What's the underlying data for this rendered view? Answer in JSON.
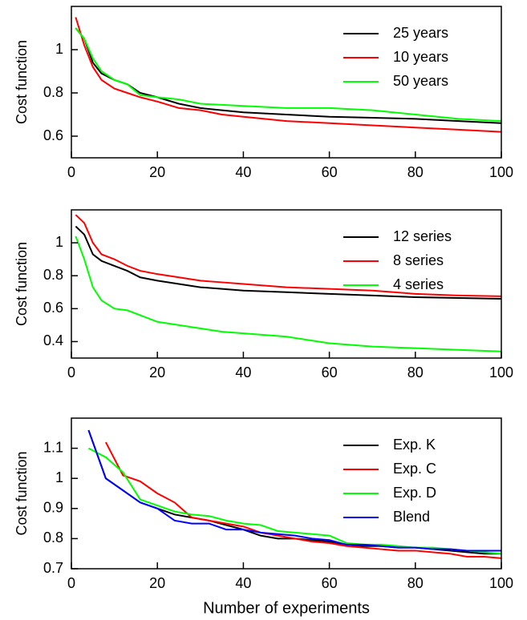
{
  "chart_data": [
    {
      "type": "line",
      "y_label": "Cost function",
      "x": [
        1,
        3,
        5,
        7,
        10,
        13,
        16,
        20,
        25,
        30,
        35,
        40,
        50,
        60,
        70,
        80,
        90,
        100
      ],
      "series": [
        {
          "name": "25 years",
          "color": "#000000",
          "values": [
            1.1,
            1.05,
            0.94,
            0.89,
            0.86,
            0.84,
            0.8,
            0.78,
            0.75,
            0.73,
            0.72,
            0.71,
            0.7,
            0.69,
            0.685,
            0.68,
            0.67,
            0.66
          ]
        },
        {
          "name": "10 years",
          "color": "#ff0000",
          "values": [
            1.15,
            1.02,
            0.92,
            0.86,
            0.82,
            0.8,
            0.78,
            0.76,
            0.73,
            0.72,
            0.7,
            0.69,
            0.67,
            0.66,
            0.65,
            0.64,
            0.63,
            0.62
          ]
        },
        {
          "name": "50 years",
          "color": "#00ff00",
          "values": [
            1.1,
            1.05,
            0.96,
            0.9,
            0.86,
            0.84,
            0.79,
            0.78,
            0.77,
            0.75,
            0.745,
            0.74,
            0.73,
            0.73,
            0.72,
            0.7,
            0.68,
            0.67
          ]
        }
      ],
      "xlim": [
        0,
        100
      ],
      "xticks": [
        0,
        20,
        40,
        60,
        80,
        100
      ],
      "ylim": [
        0.5,
        1.2
      ],
      "yticks": [
        0.6,
        0.8,
        1
      ],
      "legend": "upper right"
    },
    {
      "type": "line",
      "y_label": "Cost function",
      "x": [
        1,
        3,
        5,
        7,
        10,
        13,
        16,
        20,
        25,
        30,
        35,
        40,
        50,
        60,
        70,
        80,
        90,
        100
      ],
      "series": [
        {
          "name": "12 series",
          "color": "#000000",
          "values": [
            1.1,
            1.05,
            0.93,
            0.89,
            0.86,
            0.83,
            0.79,
            0.77,
            0.75,
            0.73,
            0.72,
            0.71,
            0.7,
            0.69,
            0.68,
            0.67,
            0.665,
            0.66
          ]
        },
        {
          "name": "8 series",
          "color": "#ff0000",
          "values": [
            1.17,
            1.12,
            1.0,
            0.93,
            0.9,
            0.86,
            0.83,
            0.81,
            0.79,
            0.77,
            0.76,
            0.75,
            0.73,
            0.72,
            0.71,
            0.69,
            0.68,
            0.675
          ]
        },
        {
          "name": "4 series",
          "color": "#00ff00",
          "values": [
            1.04,
            0.9,
            0.73,
            0.65,
            0.6,
            0.59,
            0.56,
            0.52,
            0.5,
            0.48,
            0.46,
            0.45,
            0.43,
            0.39,
            0.37,
            0.36,
            0.35,
            0.34
          ]
        }
      ],
      "xlim": [
        0,
        100
      ],
      "xticks": [
        0,
        20,
        40,
        60,
        80,
        100
      ],
      "ylim": [
        0.3,
        1.2
      ],
      "yticks": [
        0.4,
        0.6,
        0.8,
        1
      ],
      "legend": "upper right"
    },
    {
      "type": "line",
      "y_label": "Cost function",
      "x_label": "Number of experiments",
      "x": [
        4,
        8,
        12,
        16,
        20,
        24,
        28,
        32,
        36,
        40,
        44,
        48,
        52,
        56,
        60,
        64,
        68,
        72,
        76,
        80,
        84,
        88,
        92,
        96,
        100
      ],
      "series": [
        {
          "name": "Exp. K",
          "color": "#000000",
          "values": [
            1.16,
            1.0,
            0.96,
            0.92,
            0.9,
            0.88,
            0.87,
            0.86,
            0.845,
            0.83,
            0.81,
            0.8,
            0.8,
            0.795,
            0.79,
            0.78,
            0.775,
            0.775,
            0.77,
            0.77,
            0.765,
            0.76,
            0.755,
            0.75,
            0.75
          ]
        },
        {
          "name": "Exp. C",
          "color": "#ff0000",
          "values": [
            null,
            1.12,
            1.01,
            0.99,
            0.95,
            0.92,
            0.87,
            0.86,
            0.85,
            0.84,
            0.82,
            0.81,
            0.8,
            0.79,
            0.785,
            0.775,
            0.77,
            0.765,
            0.76,
            0.76,
            0.755,
            0.75,
            0.74,
            0.74,
            0.735
          ]
        },
        {
          "name": "Exp. D",
          "color": "#00ff00",
          "values": [
            1.1,
            1.07,
            1.02,
            0.93,
            0.91,
            0.89,
            0.88,
            0.875,
            0.86,
            0.85,
            0.845,
            0.825,
            0.82,
            0.815,
            0.81,
            0.785,
            0.78,
            0.78,
            0.775,
            0.77,
            0.77,
            0.765,
            0.76,
            0.755,
            0.75
          ]
        },
        {
          "name": "Blend",
          "color": "#0000ff",
          "values": [
            1.16,
            1.0,
            0.96,
            0.92,
            0.9,
            0.86,
            0.85,
            0.85,
            0.83,
            0.83,
            0.82,
            0.815,
            0.81,
            0.8,
            0.795,
            0.78,
            0.78,
            0.775,
            0.77,
            0.77,
            0.765,
            0.765,
            0.76,
            0.76,
            0.76
          ]
        }
      ],
      "xlim": [
        0,
        100
      ],
      "xticks": [
        0,
        20,
        40,
        60,
        80,
        100
      ],
      "ylim": [
        0.7,
        1.2
      ],
      "yticks": [
        0.7,
        0.8,
        0.9,
        1,
        {
          "value": 1.1,
          "label": "1.1"
        }
      ],
      "legend": "upper right"
    }
  ]
}
